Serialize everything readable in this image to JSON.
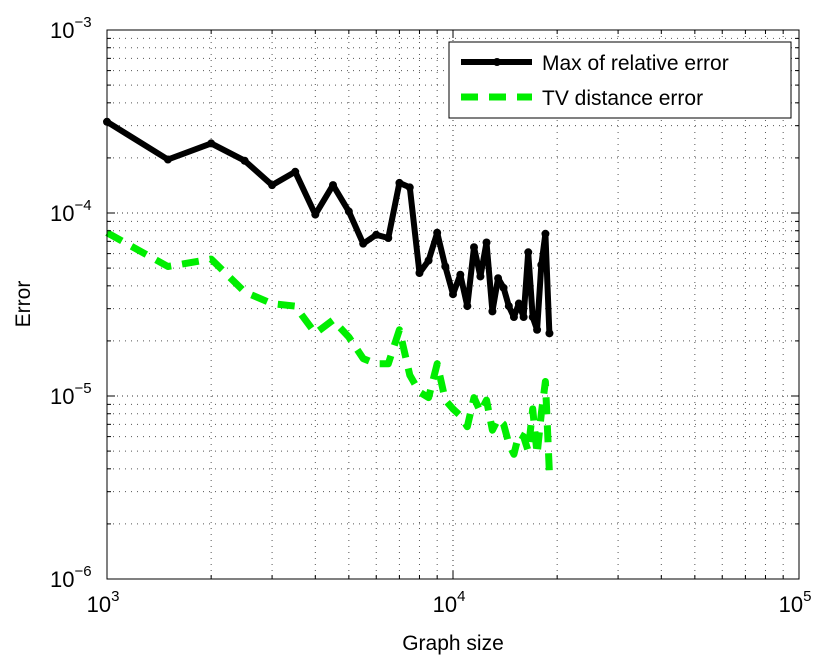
{
  "chart_data": {
    "type": "line",
    "xlabel": "Graph size",
    "ylabel": "Error",
    "xscale": "log",
    "yscale": "log",
    "xlim": [
      1000,
      100000
    ],
    "ylim": [
      1e-06,
      0.001
    ],
    "grid": true,
    "legend_position": "top-right",
    "x_ticks": [
      {
        "value": 1000,
        "base": "10",
        "exp": "3"
      },
      {
        "value": 10000,
        "base": "10",
        "exp": "4"
      },
      {
        "value": 100000,
        "base": "10",
        "exp": "5"
      }
    ],
    "y_ticks": [
      {
        "value": 1e-06,
        "base": "10",
        "exp": "−6"
      },
      {
        "value": 1e-05,
        "base": "10",
        "exp": "−5"
      },
      {
        "value": 0.0001,
        "base": "10",
        "exp": "−4"
      },
      {
        "value": 0.001,
        "base": "10",
        "exp": "−3"
      }
    ],
    "series": [
      {
        "name": "Max of relative error",
        "color": "#000000",
        "style": "solid-markers",
        "x": [
          1000,
          1500,
          2000,
          2500,
          3000,
          3500,
          4000,
          4500,
          5000,
          5500,
          6000,
          6500,
          7000,
          7500,
          8000,
          8500,
          9000,
          9500,
          10000,
          10500,
          11000,
          11500,
          12000,
          12500,
          13000,
          13500,
          14000,
          14500,
          15000,
          15500,
          16000,
          16500,
          17000,
          17500,
          18000,
          18500,
          19000
        ],
        "y": [
          0.000315,
          0.000196,
          0.00024,
          0.000193,
          0.000142,
          0.000168,
          9.8e-05,
          0.000142,
          0.000102,
          6.8e-05,
          7.6e-05,
          7.3e-05,
          0.000146,
          0.000138,
          4.7e-05,
          5.5e-05,
          7.8e-05,
          5.1e-05,
          3.6e-05,
          4.6e-05,
          3.1e-05,
          6.5e-05,
          4.5e-05,
          6.9e-05,
          2.9e-05,
          4.4e-05,
          3.9e-05,
          3.1e-05,
          2.7e-05,
          3.2e-05,
          2.7e-05,
          6.1e-05,
          2.7e-05,
          2.3e-05,
          5.2e-05,
          7.7e-05,
          2.2e-05
        ]
      },
      {
        "name": "TV distance error",
        "color": "#00ee00",
        "style": "dashed",
        "x": [
          1000,
          1500,
          2000,
          2500,
          3000,
          3500,
          4000,
          4500,
          5000,
          5500,
          6000,
          6500,
          7000,
          7500,
          8000,
          8500,
          9000,
          9500,
          10000,
          10500,
          11000,
          11500,
          12000,
          12500,
          13000,
          13500,
          14000,
          14500,
          15000,
          15500,
          16000,
          16500,
          17000,
          17500,
          18000,
          18500,
          19000
        ],
        "y": [
          7.8e-05,
          5.1e-05,
          5.6e-05,
          3.7e-05,
          3.2e-05,
          3.1e-05,
          2.2e-05,
          2.6e-05,
          2.1e-05,
          1.6e-05,
          1.5e-05,
          1.5e-05,
          2.3e-05,
          1.3e-05,
          1.05e-05,
          9.8e-06,
          1.5e-05,
          9.5e-06,
          8.5e-06,
          7.8e-06,
          6.8e-06,
          9.8e-06,
          8.2e-06,
          9.5e-06,
          6.5e-06,
          7.5e-06,
          7e-06,
          5.5e-06,
          4.8e-06,
          6.2e-06,
          6e-06,
          5e-06,
          8.5e-06,
          4.8e-06,
          8e-06,
          1.2e-05,
          3.8e-06
        ]
      }
    ]
  }
}
